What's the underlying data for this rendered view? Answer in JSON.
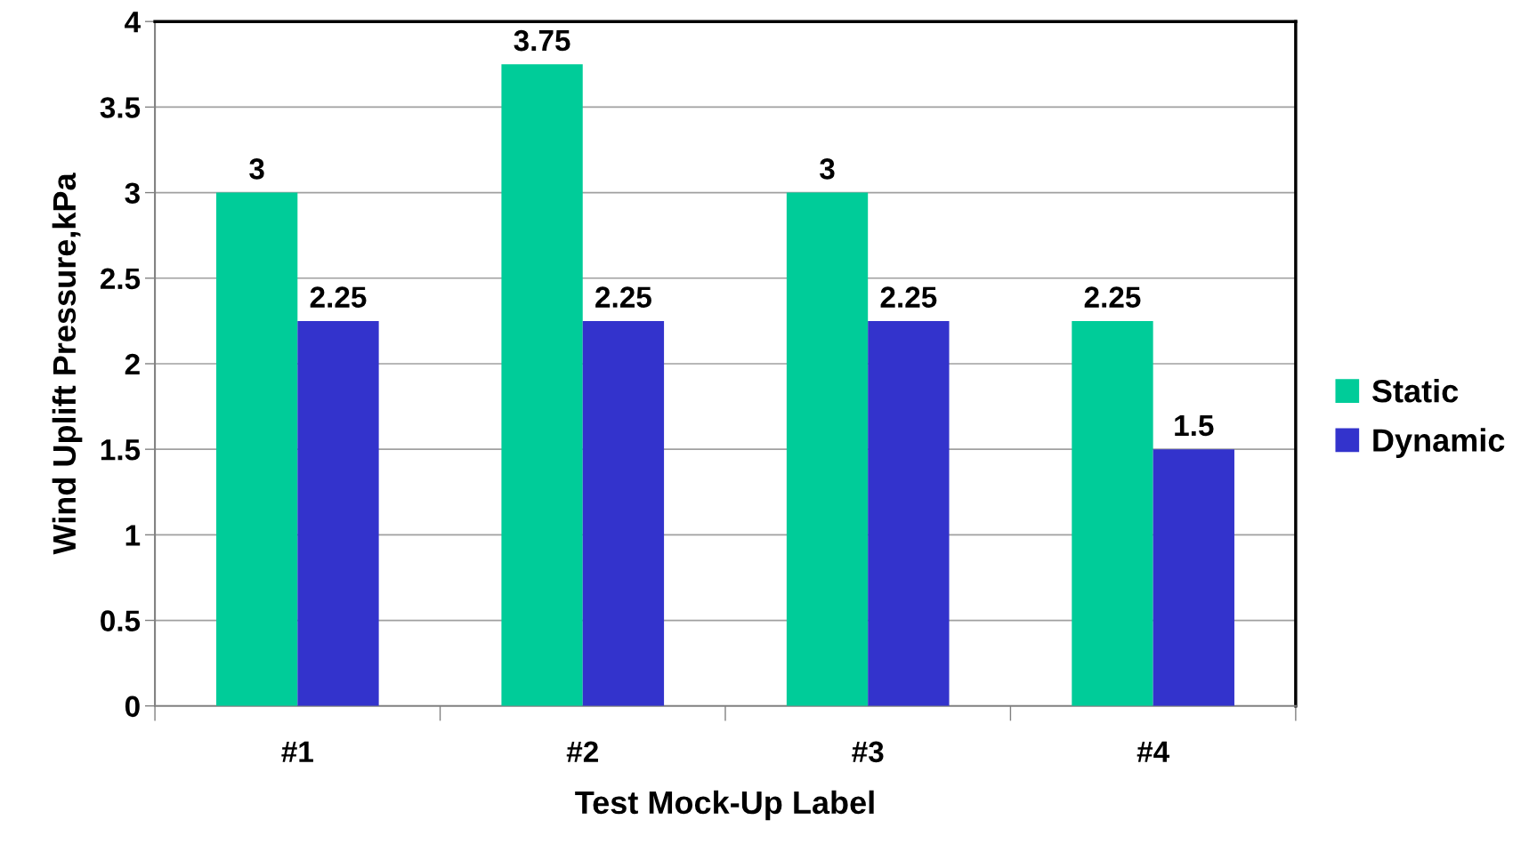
{
  "chart_data": {
    "type": "bar",
    "xlabel": "Test Mock-Up Label",
    "ylabel": "Wind Uplift Pressure,kPa",
    "categories": [
      "#1",
      "#2",
      "#3",
      "#4"
    ],
    "series": [
      {
        "name": "Static",
        "color": "#00cc99",
        "values": [
          3,
          3.75,
          3,
          2.25
        ]
      },
      {
        "name": "Dynamic",
        "color": "#3333cc",
        "values": [
          2.25,
          2.25,
          2.25,
          1.5
        ]
      }
    ],
    "ylim": [
      0,
      4
    ],
    "yticks": [
      0,
      0.5,
      1,
      1.5,
      2,
      2.5,
      3,
      3.5,
      4
    ],
    "grid": "y",
    "legend": "right",
    "data_labels": true
  }
}
